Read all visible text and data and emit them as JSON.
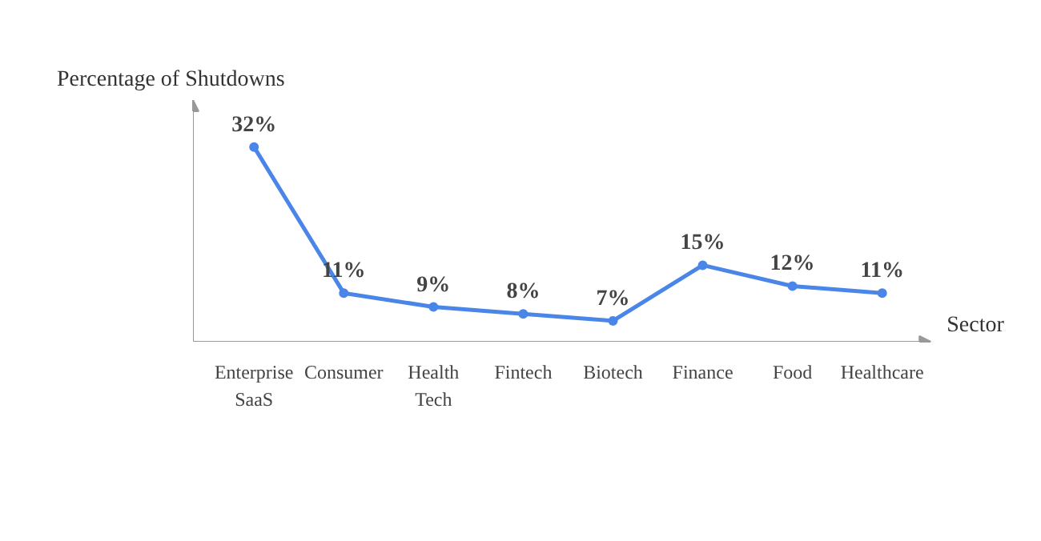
{
  "chart_data": {
    "type": "line",
    "title": "Percentage of Shutdowns",
    "xlabel": "Sector",
    "categories": [
      "Enterprise\nSaaS",
      "Consumer",
      "Health\nTech",
      "Fintech",
      "Biotech",
      "Finance",
      "Food",
      "Healthcare"
    ],
    "series": [
      {
        "color": "#4a86e8",
        "values": [
          32,
          11,
          9,
          8,
          7,
          15,
          12,
          11
        ],
        "value_labels": [
          "32%",
          "11%",
          "9%",
          "8%",
          "7%",
          "15%",
          "12%",
          "11%"
        ]
      }
    ],
    "marker": "circle",
    "grid": false
  }
}
